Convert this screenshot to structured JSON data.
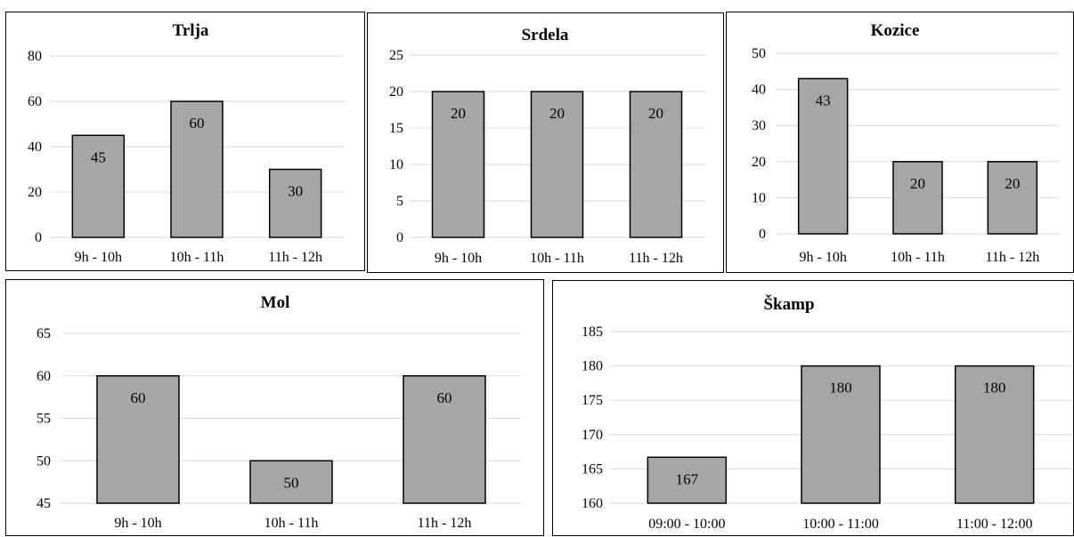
{
  "chart_data": [
    {
      "type": "bar",
      "title": "Trlja",
      "categories": [
        "9h - 10h",
        "10h - 11h",
        "11h - 12h"
      ],
      "values": [
        45,
        60,
        30
      ],
      "ylim": [
        0,
        80
      ],
      "yticks": [
        0,
        20,
        40,
        60,
        80
      ],
      "grid": true,
      "bar_color": "#a6a6a6"
    },
    {
      "type": "bar",
      "title": "Srdela",
      "categories": [
        "9h - 10h",
        "10h - 11h",
        "11h - 12h"
      ],
      "values": [
        20,
        20,
        20
      ],
      "ylim": [
        0,
        25
      ],
      "yticks": [
        0,
        5,
        10,
        15,
        20,
        25
      ],
      "grid": true,
      "bar_color": "#a6a6a6"
    },
    {
      "type": "bar",
      "title": "Kozice",
      "categories": [
        "9h - 10h",
        "10h - 11h",
        "11h - 12h"
      ],
      "values": [
        43,
        20,
        20
      ],
      "ylim": [
        0,
        50
      ],
      "yticks": [
        0,
        10,
        20,
        30,
        40,
        50
      ],
      "grid": true,
      "bar_color": "#a6a6a6"
    },
    {
      "type": "bar",
      "title": "Mol",
      "categories": [
        "9h - 10h",
        "10h - 11h",
        "11h - 12h"
      ],
      "values": [
        60,
        50,
        60
      ],
      "ylim": [
        45,
        65
      ],
      "yticks": [
        45,
        50,
        55,
        60,
        65
      ],
      "grid": true,
      "bar_color": "#a6a6a6"
    },
    {
      "type": "bar",
      "title": "Škamp",
      "categories": [
        "09:00 - 10:00",
        "10:00 - 11:00",
        "11:00 - 12:00"
      ],
      "values": [
        167,
        180,
        180
      ],
      "data_values": [
        166.7,
        180,
        180
      ],
      "ylim": [
        160,
        185
      ],
      "yticks": [
        160,
        165,
        170,
        175,
        180,
        185
      ],
      "grid": true,
      "bar_color": "#a6a6a6"
    }
  ]
}
